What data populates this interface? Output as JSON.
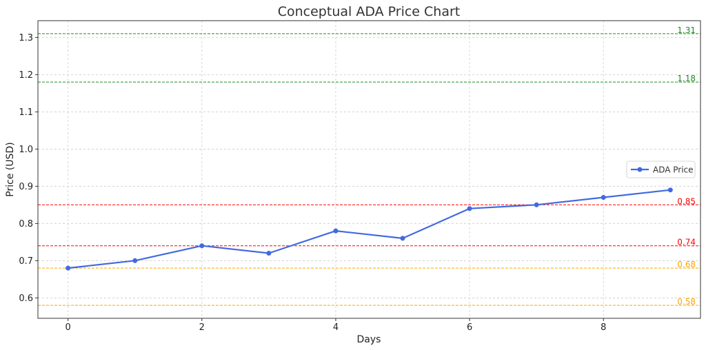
{
  "chart_data": {
    "type": "line",
    "title": "Conceptual ADA Price Chart",
    "xlabel": "Days",
    "ylabel": "Price (USD)",
    "xlim": [
      -0.45,
      9.45
    ],
    "ylim": [
      0.545,
      1.345
    ],
    "x_ticks": [
      0,
      2,
      4,
      6,
      8
    ],
    "y_ticks": [
      0.6,
      0.7,
      0.8,
      0.9,
      1.0,
      1.1,
      1.2,
      1.3
    ],
    "x_tick_labels": [
      "0",
      "2",
      "4",
      "6",
      "8"
    ],
    "y_tick_labels": [
      "0.6",
      "0.7",
      "0.8",
      "0.9",
      "1.0",
      "1.1",
      "1.2",
      "1.3"
    ],
    "grid": true,
    "legend_position": "center-right",
    "series": [
      {
        "name": "ADA Price",
        "color": "#4169e1",
        "x": [
          0,
          1,
          2,
          3,
          4,
          5,
          6,
          7,
          8,
          9
        ],
        "values": [
          0.68,
          0.7,
          0.74,
          0.72,
          0.78,
          0.76,
          0.84,
          0.85,
          0.87,
          0.89
        ]
      }
    ],
    "reference_lines": [
      {
        "value": 1.31,
        "label": "1.31",
        "color": "#228b22"
      },
      {
        "value": 1.18,
        "label": "1.18",
        "color": "#228b22"
      },
      {
        "value": 0.85,
        "label": "0.85",
        "color": "#ff0000"
      },
      {
        "value": 0.74,
        "label": "0.74",
        "color": "#ff0000"
      },
      {
        "value": 0.68,
        "label": "0.68",
        "color": "#ffa500"
      },
      {
        "value": 0.58,
        "label": "0.58",
        "color": "#ffa500"
      }
    ]
  }
}
